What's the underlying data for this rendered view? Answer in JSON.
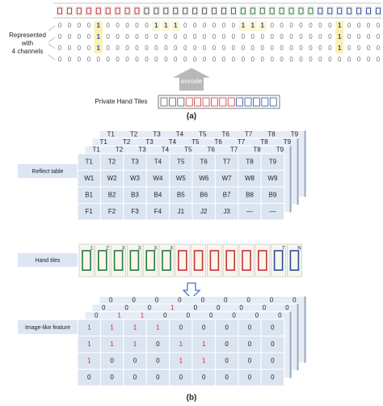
{
  "part_a": {
    "channel_label": [
      "Represented",
      "with",
      "4 channels"
    ],
    "matrix": [
      [
        0,
        0,
        0,
        0,
        1,
        0,
        0,
        0,
        0,
        0,
        1,
        1,
        1,
        0,
        0,
        0,
        0,
        0,
        0,
        1,
        1,
        1,
        0,
        0,
        0,
        0,
        0,
        0,
        0,
        1,
        0,
        0,
        0,
        0
      ],
      [
        0,
        0,
        0,
        0,
        1,
        0,
        0,
        0,
        0,
        0,
        0,
        0,
        0,
        0,
        0,
        0,
        0,
        0,
        0,
        0,
        0,
        0,
        0,
        0,
        0,
        0,
        0,
        0,
        0,
        1,
        0,
        0,
        0,
        0
      ],
      [
        0,
        0,
        0,
        0,
        1,
        0,
        0,
        0,
        0,
        0,
        0,
        0,
        0,
        0,
        0,
        0,
        0,
        0,
        0,
        0,
        0,
        0,
        0,
        0,
        0,
        0,
        0,
        0,
        0,
        1,
        0,
        0,
        0,
        0
      ],
      [
        0,
        0,
        0,
        0,
        0,
        0,
        0,
        0,
        0,
        0,
        0,
        0,
        0,
        0,
        0,
        0,
        0,
        0,
        0,
        0,
        0,
        0,
        0,
        0,
        0,
        0,
        0,
        0,
        0,
        0,
        0,
        0,
        0,
        0
      ]
    ],
    "encode": "encode",
    "hand_label": "Private Hand Tiles",
    "caption": "(a)"
  },
  "part_b": {
    "reflect_label": "Reflect table",
    "reflect_back_layers": [
      [
        "T1",
        "T2",
        "T3",
        "T4",
        "T5",
        "T6",
        "T7",
        "T8",
        "T9"
      ],
      [
        "T1",
        "T2",
        "T3",
        "T4",
        "T5",
        "T6",
        "T7",
        "T8",
        "T9"
      ],
      [
        "T1",
        "T2",
        "T3",
        "T4",
        "T5",
        "T6",
        "T7",
        "T8",
        "T9"
      ]
    ],
    "reflect_table": [
      [
        "T1",
        "T2",
        "T3",
        "T4",
        "T5",
        "T6",
        "T7",
        "T8",
        "T9"
      ],
      [
        "W1",
        "W2",
        "W3",
        "W4",
        "W5",
        "W6",
        "W7",
        "W8",
        "W9"
      ],
      [
        "B1",
        "B2",
        "B3",
        "B4",
        "B5",
        "B6",
        "B7",
        "B8",
        "B9"
      ],
      [
        "F1",
        "F2",
        "F3",
        "F4",
        "J1",
        "J2",
        "J3",
        "—",
        "—"
      ]
    ],
    "hand_label": "Hand tiles",
    "hand_tile_marks": [
      "1",
      "2",
      "3",
      "3",
      "3",
      "3",
      "",
      "",
      "",
      "",
      "",
      "",
      "7",
      "N"
    ],
    "feature_label": "Image-like feature",
    "feature_back_layers": [
      [
        "0",
        "0",
        "0",
        "0",
        "0",
        "0",
        "0",
        "0",
        "0"
      ],
      [
        "0",
        "0",
        "0",
        "1",
        "0",
        "0",
        "0",
        "0",
        "0"
      ],
      [
        "0",
        "1",
        "1",
        "0",
        "0",
        "0",
        "0",
        "0",
        "0"
      ]
    ],
    "feature_table": [
      [
        "1",
        "1",
        "1",
        "1",
        "0",
        "0",
        "0",
        "0",
        "0"
      ],
      [
        "1",
        "1",
        "1",
        "0",
        "1",
        "1",
        "0",
        "0",
        "0"
      ],
      [
        "1",
        "0",
        "0",
        "0",
        "1",
        "1",
        "0",
        "0",
        "0"
      ],
      [
        "0",
        "0",
        "0",
        "0",
        "0",
        "0",
        "0",
        "0",
        "0"
      ]
    ],
    "caption": "(b)"
  }
}
